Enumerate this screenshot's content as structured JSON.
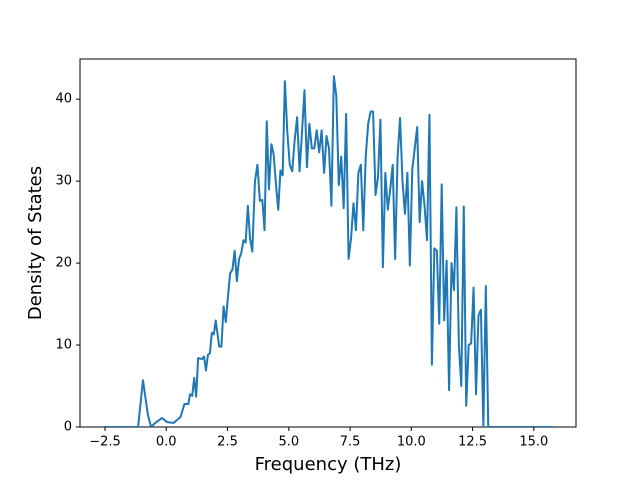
{
  "chart_data": {
    "type": "line",
    "xlabel": "Frequency (THz)",
    "ylabel": "Density of States",
    "color": "#1f77b4",
    "x": [
      -2.55,
      -1.15,
      -0.95,
      -0.75,
      -0.62,
      -0.45,
      -0.17,
      0.03,
      0.3,
      0.58,
      0.74,
      0.9,
      0.97,
      1.06,
      1.14,
      1.22,
      1.3,
      1.46,
      1.54,
      1.62,
      1.7,
      1.78,
      1.86,
      1.94,
      2.02,
      2.16,
      2.25,
      2.34,
      2.43,
      2.52,
      2.61,
      2.7,
      2.79,
      2.88,
      2.97,
      3.06,
      3.15,
      3.24,
      3.33,
      3.42,
      3.51,
      3.62,
      3.72,
      3.82,
      3.92,
      4.01,
      4.1,
      4.19,
      4.29,
      4.38,
      4.48,
      4.57,
      4.66,
      4.75,
      4.84,
      4.94,
      5.04,
      5.14,
      5.24,
      5.34,
      5.44,
      5.54,
      5.64,
      5.74,
      5.84,
      5.94,
      6.04,
      6.14,
      6.24,
      6.34,
      6.44,
      6.54,
      6.64,
      6.74,
      6.84,
      6.94,
      7.04,
      7.14,
      7.24,
      7.34,
      7.44,
      7.54,
      7.64,
      7.74,
      7.84,
      7.94,
      8.04,
      8.14,
      8.24,
      8.34,
      8.44,
      8.54,
      8.64,
      8.74,
      8.84,
      8.94,
      9.04,
      9.14,
      9.24,
      9.34,
      9.44,
      9.54,
      9.64,
      9.74,
      9.84,
      9.94,
      10.04,
      10.14,
      10.24,
      10.34,
      10.44,
      10.54,
      10.64,
      10.74,
      10.84,
      10.94,
      11.04,
      11.14,
      11.24,
      11.34,
      11.44,
      11.54,
      11.64,
      11.74,
      11.84,
      11.94,
      12.04,
      12.14,
      12.24,
      12.34,
      12.44,
      12.54,
      12.64,
      12.74,
      12.84,
      12.94,
      13.04,
      13.14,
      15.8
    ],
    "values": [
      0,
      0,
      5.7,
      1.5,
      0,
      0.5,
      1.1,
      0.6,
      0.5,
      1.2,
      2.8,
      2.8,
      4,
      3.8,
      6,
      3.7,
      8.4,
      8.3,
      8.6,
      6.9,
      8.8,
      9,
      11.5,
      11.3,
      13,
      9.8,
      9.8,
      14.7,
      12.8,
      16,
      18.8,
      19.2,
      21.5,
      17.8,
      20.5,
      21.2,
      22.8,
      22.5,
      27,
      23,
      21.4,
      30,
      32,
      27.6,
      27.7,
      24,
      37.3,
      29,
      34.5,
      33.3,
      29.5,
      26.5,
      31.3,
      30.7,
      42.2,
      36,
      32,
      31.2,
      35,
      37.8,
      31.2,
      36,
      41.1,
      31.7,
      37,
      34,
      34,
      36.2,
      33.5,
      36.2,
      31,
      35.5,
      34,
      27,
      42.8,
      40.4,
      29.5,
      33,
      26.7,
      38.2,
      20.5,
      23,
      27.3,
      24,
      31,
      32,
      24,
      33,
      37,
      38.5,
      38.5,
      28.3,
      30.5,
      37.5,
      19.5,
      31,
      26.5,
      29,
      32,
      20.5,
      33,
      37.7,
      30,
      26,
      31,
      19.7,
      31.5,
      34,
      36.6,
      25,
      30,
      27,
      22.8,
      38.1,
      7.6,
      21.8,
      21.5,
      12.6,
      29.6,
      13,
      20.3,
      4.5,
      20,
      16.7,
      26.8,
      10,
      5,
      26.9,
      2.6,
      10,
      10.2,
      17,
      4,
      13.6,
      14.3,
      0,
      17.2,
      0,
      0
    ],
    "xlim": [
      -3.52,
      16.72
    ],
    "ylim": [
      0,
      44.9
    ],
    "xticks": [
      {
        "value": -2.5,
        "label": "−2.5"
      },
      {
        "value": 0,
        "label": "0.0"
      },
      {
        "value": 2.5,
        "label": "2.5"
      },
      {
        "value": 5,
        "label": "5.0"
      },
      {
        "value": 7.5,
        "label": "7.5"
      },
      {
        "value": 10,
        "label": "10.0"
      },
      {
        "value": 12.5,
        "label": "12.5"
      },
      {
        "value": 15,
        "label": "15.0"
      }
    ],
    "yticks": [
      0,
      10,
      20,
      30,
      40
    ]
  }
}
